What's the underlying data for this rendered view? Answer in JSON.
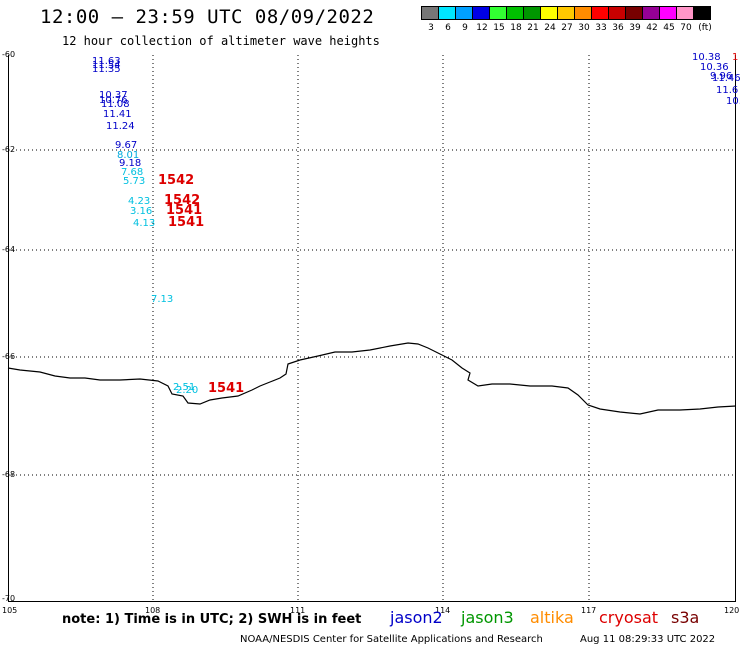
{
  "header": {
    "title": "12:00 – 23:59 UTC 08/09/2022",
    "subtitle": "12 hour collection of altimeter wave heights"
  },
  "colorbar": {
    "colors": [
      "#777777",
      "#00e6ff",
      "#00a0ff",
      "#0000e6",
      "#32ff32",
      "#00c000",
      "#009600",
      "#ffff00",
      "#ffc800",
      "#ff8c00",
      "#ff0000",
      "#c80000",
      "#780000",
      "#960096",
      "#ff00ff",
      "#ff96c8",
      "#000000"
    ],
    "labels": [
      "3",
      "6",
      "9",
      "12",
      "15",
      "18",
      "21",
      "24",
      "27",
      "30",
      "33",
      "36",
      "39",
      "42",
      "45",
      "70",
      "(ft)"
    ]
  },
  "axes": {
    "y_ticks": [
      "-60",
      "-62",
      "-64",
      "-66",
      "-68",
      "-70"
    ],
    "x_ticks": [
      "105",
      "108",
      "111",
      "114",
      "117",
      "120"
    ]
  },
  "observations": [
    {
      "text": "11.63",
      "color": "#0000c8"
    },
    {
      "text": "11.54",
      "color": "#0000c8"
    },
    {
      "text": "11.35",
      "color": "#0000c8"
    },
    {
      "text": "10.37",
      "color": "#0000c8"
    },
    {
      "text": "10.76",
      "color": "#0000c8"
    },
    {
      "text": "11.08",
      "color": "#0000c8"
    },
    {
      "text": "11.41",
      "color": "#0000c8"
    },
    {
      "text": "11.24",
      "color": "#0000c8"
    },
    {
      "text": "9.67",
      "color": "#0000c8"
    },
    {
      "text": "8.01",
      "color": "#00aadd"
    },
    {
      "text": "9.18",
      "color": "#0000c8"
    },
    {
      "text": "7.68",
      "color": "#00c0e0"
    },
    {
      "text": "5.73",
      "color": "#00c0e0"
    },
    {
      "text": "1542",
      "color": "#dd0000"
    },
    {
      "text": "4.23",
      "color": "#00c0e0"
    },
    {
      "text": "1542",
      "color": "#dd0000"
    },
    {
      "text": "3.16",
      "color": "#00c0e0"
    },
    {
      "text": "1541",
      "color": "#dd0000"
    },
    {
      "text": "4.13",
      "color": "#00c0e0"
    },
    {
      "text": "1541",
      "color": "#dd0000"
    },
    {
      "text": "7.13",
      "color": "#00c0e0"
    },
    {
      "text": "2.51",
      "color": "#00c0e0"
    },
    {
      "text": "2.20",
      "color": "#00c0e0"
    },
    {
      "text": "1541",
      "color": "#dd0000"
    },
    {
      "text": "10.38",
      "color": "#0000c8"
    },
    {
      "text": "1",
      "color": "#dd0000"
    },
    {
      "text": "10.36",
      "color": "#0000c8"
    },
    {
      "text": "9.96",
      "color": "#0000c8"
    },
    {
      "text": "11.46",
      "color": "#0000c8"
    },
    {
      "text": "11.6",
      "color": "#0000c8"
    },
    {
      "text": "10.",
      "color": "#0000c8"
    }
  ],
  "footer": {
    "note": "note: 1) Time is in UTC; 2) SWH is in feet",
    "satellites": [
      {
        "name": "jason2",
        "color": "#0000c8"
      },
      {
        "name": "jason3",
        "color": "#009600"
      },
      {
        "name": "altika",
        "color": "#ff8c00"
      },
      {
        "name": "cryosat",
        "color": "#dd0000"
      },
      {
        "name": "s3a",
        "color": "#780000"
      }
    ],
    "credit": "NOAA/NESDIS Center for Satellite Applications and Research",
    "timestamp": "Aug 11 08:29:33 UTC 2022"
  }
}
